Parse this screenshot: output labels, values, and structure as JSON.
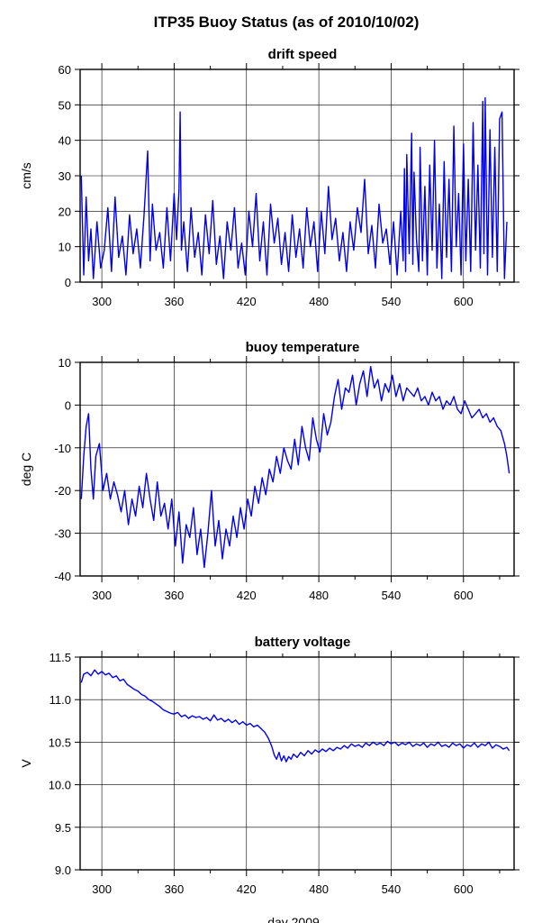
{
  "figure": {
    "title": "ITP35 Buoy Status (as of 2010/10/02)",
    "xlabel": "day 2009"
  },
  "chart_data": [
    {
      "type": "line",
      "title": "drift speed",
      "ylabel": "cm/s",
      "xlim": [
        282,
        642
      ],
      "ylim": [
        0,
        60
      ],
      "xticks": [
        300,
        360,
        420,
        480,
        540,
        600
      ],
      "yticks": [
        0,
        10,
        20,
        30,
        40,
        50,
        60
      ],
      "grid": true,
      "line_color": "#0000ee",
      "series": [
        {
          "x": [
            283,
            285,
            287,
            289,
            291,
            293,
            296,
            299,
            302,
            305,
            308,
            311,
            314,
            317,
            320,
            323,
            326,
            329,
            332,
            335,
            338,
            340,
            342,
            345,
            348,
            351,
            354,
            357,
            360,
            362,
            364,
            365,
            366,
            368,
            371,
            374,
            377,
            380,
            383,
            386,
            389,
            392,
            395,
            398,
            401,
            404,
            407,
            410,
            413,
            416,
            419,
            422,
            425,
            428,
            431,
            434,
            437,
            440,
            443,
            446,
            449,
            452,
            455,
            458,
            461,
            464,
            467,
            470,
            473,
            476,
            479,
            482,
            485,
            488,
            491,
            494,
            497,
            500,
            503,
            506,
            509,
            512,
            515,
            518,
            521,
            524,
            527,
            530,
            533,
            536,
            539,
            542,
            545,
            548,
            550,
            551,
            552,
            553,
            555,
            557,
            558,
            559,
            561,
            563,
            564,
            566,
            568,
            570,
            572,
            574,
            576,
            578,
            580,
            582,
            584,
            586,
            588,
            590,
            592,
            594,
            596,
            598,
            600,
            602,
            604,
            606,
            608,
            610,
            612,
            614,
            616,
            617,
            618,
            620,
            622,
            624,
            626,
            628,
            630,
            632,
            634,
            636
          ],
          "y": [
            30,
            2,
            24,
            6,
            15,
            1,
            17,
            4,
            9,
            21,
            3,
            24,
            7,
            13,
            2,
            19,
            8,
            15,
            4,
            19,
            37,
            6,
            22,
            9,
            14,
            4,
            21,
            6,
            25,
            12,
            26,
            48,
            9,
            17,
            3,
            21,
            7,
            14,
            2,
            19,
            8,
            23,
            5,
            13,
            1,
            17,
            9,
            21,
            4,
            11,
            2,
            20,
            10,
            25,
            6,
            17,
            2,
            22,
            11,
            18,
            5,
            14,
            3,
            19,
            7,
            15,
            4,
            21,
            10,
            17,
            3,
            20,
            8,
            27,
            12,
            18,
            6,
            14,
            3,
            17,
            9,
            21,
            14,
            29,
            8,
            16,
            4,
            22,
            11,
            15,
            5,
            17,
            2,
            20,
            6,
            32,
            3,
            36,
            8,
            42,
            5,
            31,
            12,
            3,
            38,
            6,
            27,
            2,
            33,
            9,
            40,
            4,
            22,
            1,
            34,
            7,
            29,
            3,
            44,
            10,
            25,
            2,
            39,
            6,
            29,
            3,
            45,
            9,
            33,
            4,
            51,
            8,
            52,
            2,
            43,
            7,
            38,
            3,
            46,
            48,
            1,
            17
          ]
        }
      ]
    },
    {
      "type": "line",
      "title": "buoy temperature",
      "ylabel": "deg C",
      "xlim": [
        282,
        642
      ],
      "ylim": [
        -40,
        10
      ],
      "xticks": [
        300,
        360,
        420,
        480,
        540,
        600
      ],
      "yticks": [
        -40,
        -30,
        -20,
        -10,
        0,
        10
      ],
      "grid": true,
      "line_color": "#0000ee",
      "series": [
        {
          "x": [
            283,
            285,
            287,
            289,
            291,
            293,
            295,
            298,
            301,
            304,
            307,
            310,
            313,
            316,
            319,
            322,
            325,
            328,
            331,
            334,
            337,
            340,
            343,
            346,
            349,
            352,
            355,
            358,
            361,
            364,
            367,
            370,
            373,
            376,
            379,
            382,
            385,
            388,
            391,
            394,
            397,
            400,
            403,
            406,
            409,
            412,
            415,
            418,
            421,
            424,
            427,
            430,
            433,
            436,
            439,
            442,
            445,
            448,
            451,
            454,
            457,
            460,
            463,
            466,
            469,
            472,
            475,
            478,
            481,
            484,
            487,
            490,
            493,
            496,
            499,
            502,
            505,
            508,
            511,
            514,
            517,
            520,
            523,
            526,
            529,
            532,
            535,
            538,
            541,
            544,
            547,
            550,
            553,
            556,
            559,
            562,
            565,
            568,
            571,
            574,
            577,
            580,
            583,
            586,
            589,
            592,
            595,
            598,
            601,
            604,
            607,
            610,
            613,
            616,
            619,
            622,
            625,
            628,
            631,
            634,
            636,
            637,
            638
          ],
          "y": [
            -22,
            -12,
            -5,
            -2,
            -15,
            -22,
            -12,
            -9,
            -20,
            -16,
            -22,
            -18,
            -21,
            -25,
            -20,
            -28,
            -22,
            -26,
            -19,
            -24,
            -16,
            -22,
            -27,
            -18,
            -26,
            -23,
            -29,
            -22,
            -33,
            -25,
            -37,
            -28,
            -31,
            -24,
            -35,
            -29,
            -38,
            -30,
            -20,
            -33,
            -27,
            -36,
            -29,
            -33,
            -26,
            -31,
            -24,
            -29,
            -22,
            -26,
            -19,
            -23,
            -17,
            -21,
            -15,
            -18,
            -12,
            -16,
            -10,
            -13,
            -15,
            -8,
            -14,
            -5,
            -10,
            -13,
            -3,
            -8,
            -11,
            -2,
            -7,
            -4,
            2,
            6,
            -1,
            4,
            3,
            7,
            0,
            5,
            8,
            2,
            9,
            4,
            6,
            1,
            5,
            3,
            7,
            2,
            5,
            1,
            4,
            3,
            2,
            4,
            1,
            2,
            0,
            3,
            1,
            2,
            -1,
            1,
            0,
            2,
            -1,
            -2,
            1,
            -1,
            -3,
            -2,
            -1,
            -3,
            -2,
            -4,
            -3,
            -5,
            -6,
            -9,
            -12,
            -14,
            -16
          ]
        }
      ]
    },
    {
      "type": "line",
      "title": "battery voltage",
      "ylabel": "V",
      "xlim": [
        282,
        642
      ],
      "ylim": [
        9.0,
        11.5
      ],
      "xticks": [
        300,
        360,
        420,
        480,
        540,
        600
      ],
      "yticks": [
        9.0,
        9.5,
        10.0,
        10.5,
        11.0,
        11.5
      ],
      "grid": true,
      "line_color": "#0000ee",
      "series": [
        {
          "x": [
            283,
            285,
            288,
            291,
            294,
            297,
            300,
            303,
            306,
            309,
            312,
            315,
            318,
            321,
            324,
            327,
            330,
            333,
            336,
            339,
            342,
            345,
            348,
            351,
            354,
            357,
            360,
            363,
            366,
            369,
            372,
            375,
            378,
            381,
            384,
            387,
            390,
            393,
            396,
            399,
            402,
            405,
            408,
            411,
            414,
            417,
            420,
            423,
            426,
            429,
            432,
            435,
            438,
            441,
            443,
            445,
            447,
            449,
            451,
            453,
            455,
            457,
            459,
            462,
            465,
            468,
            471,
            474,
            477,
            480,
            483,
            486,
            489,
            492,
            495,
            498,
            501,
            504,
            507,
            510,
            513,
            516,
            519,
            522,
            525,
            528,
            531,
            534,
            537,
            540,
            543,
            546,
            549,
            552,
            555,
            558,
            561,
            564,
            567,
            570,
            573,
            576,
            579,
            582,
            585,
            588,
            591,
            594,
            597,
            600,
            603,
            606,
            609,
            612,
            615,
            618,
            621,
            624,
            627,
            630,
            633,
            636,
            638
          ],
          "y": [
            11.2,
            11.3,
            11.32,
            11.28,
            11.35,
            11.3,
            11.33,
            11.29,
            11.31,
            11.26,
            11.28,
            11.22,
            11.24,
            11.18,
            11.15,
            11.12,
            11.1,
            11.06,
            11.04,
            11.0,
            10.98,
            10.95,
            10.92,
            10.88,
            10.86,
            10.84,
            10.83,
            10.85,
            10.8,
            10.82,
            10.78,
            10.81,
            10.79,
            10.8,
            10.77,
            10.79,
            10.75,
            10.82,
            10.76,
            10.78,
            10.74,
            10.77,
            10.73,
            10.76,
            10.71,
            10.74,
            10.7,
            10.72,
            10.68,
            10.7,
            10.66,
            10.62,
            10.55,
            10.45,
            10.35,
            10.3,
            10.38,
            10.28,
            10.34,
            10.27,
            10.33,
            10.3,
            10.36,
            10.32,
            10.38,
            10.34,
            10.4,
            10.36,
            10.41,
            10.38,
            10.42,
            10.39,
            10.43,
            10.4,
            10.44,
            10.42,
            10.46,
            10.43,
            10.48,
            10.45,
            10.47,
            10.44,
            10.49,
            10.46,
            10.5,
            10.47,
            10.49,
            10.46,
            10.51,
            10.48,
            10.5,
            10.46,
            10.49,
            10.47,
            10.5,
            10.45,
            10.48,
            10.46,
            10.49,
            10.44,
            10.48,
            10.46,
            10.5,
            10.45,
            10.47,
            10.44,
            10.49,
            10.46,
            10.48,
            10.43,
            10.47,
            10.45,
            10.49,
            10.44,
            10.48,
            10.46,
            10.5,
            10.43,
            10.47,
            10.45,
            10.42,
            10.44,
            10.4
          ]
        }
      ]
    }
  ]
}
